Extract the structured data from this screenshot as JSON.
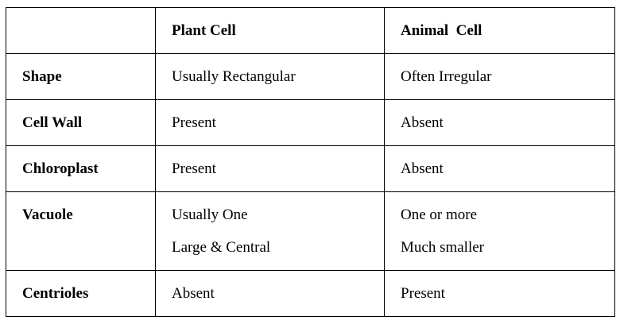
{
  "table": {
    "header": {
      "corner": "",
      "col1": "Plant Cell",
      "col2": "Animal  Cell"
    },
    "rows": [
      {
        "label": "Shape",
        "plant": [
          "Usually Rectangular"
        ],
        "animal": [
          "Often Irregular"
        ]
      },
      {
        "label": "Cell Wall",
        "plant": [
          "Present"
        ],
        "animal": [
          "Absent"
        ]
      },
      {
        "label": "Chloroplast",
        "plant": [
          "Present"
        ],
        "animal": [
          "Absent"
        ]
      },
      {
        "label": "Vacuole",
        "plant": [
          "Usually One",
          "Large & Central"
        ],
        "animal": [
          "One or more",
          "Much smaller"
        ]
      },
      {
        "label": "Centrioles",
        "plant": [
          "Absent"
        ],
        "animal": [
          "Present"
        ]
      }
    ]
  }
}
